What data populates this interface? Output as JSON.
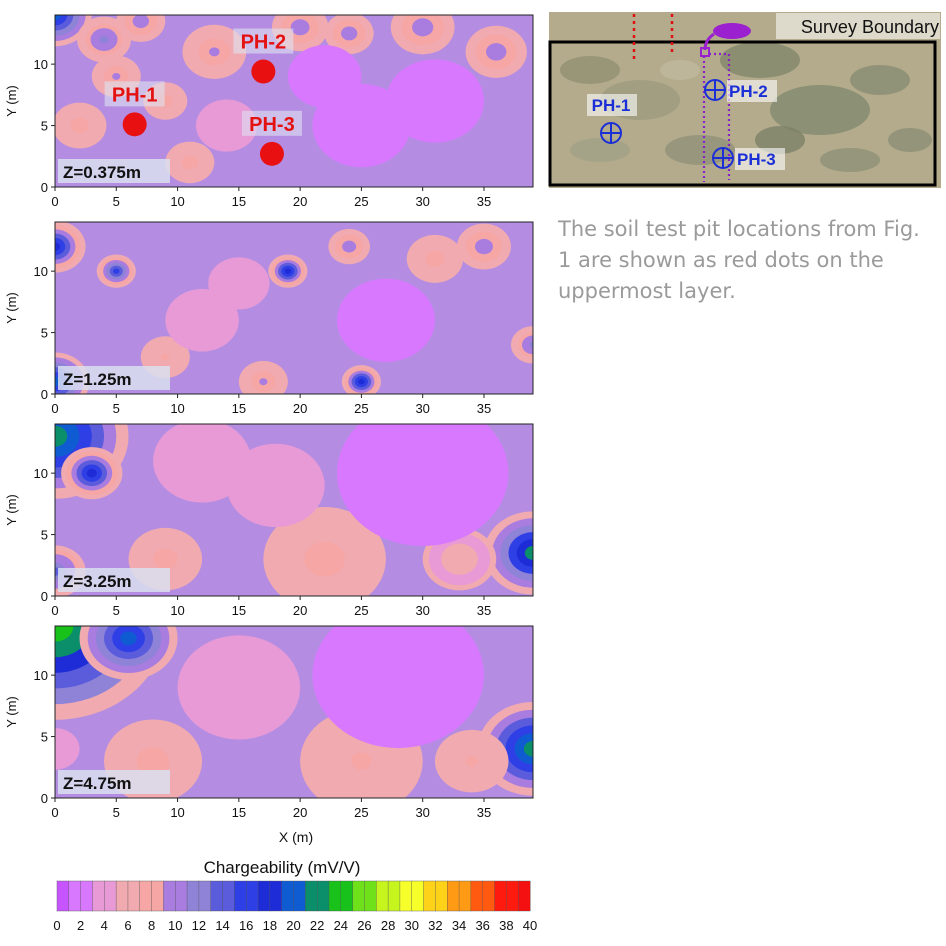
{
  "colors": {
    "scale": [
      "#c655ff",
      "#d878ff",
      "#e89ad6",
      "#f0aab0",
      "#f6a6a4",
      "#a97ce0",
      "#8f83d8",
      "#5b5cdc",
      "#2f3fe6",
      "#1e2cd8",
      "#0f5bd2",
      "#0a8f6a",
      "#19c11b",
      "#6fe11b",
      "#c6f51e",
      "#f7ff2a",
      "#ffd21a",
      "#ff9a14",
      "#ff5a10",
      "#ff1a0f",
      "#f41010"
    ],
    "pit_marker": "#e81010",
    "pit_label": "#e41111",
    "photo_label": "#1b2fd6",
    "red_line": "#e01010",
    "purple_line": "#8a20c8",
    "blob": "#9a20d0"
  },
  "chart_data": [
    {
      "type": "heatmap",
      "layer_label": "Z=0.375m",
      "xlabel": "",
      "ylabel": "Y (m)",
      "xlim": [
        0,
        39
      ],
      "ylim": [
        0,
        14
      ],
      "xticks": [
        "0",
        "5",
        "10",
        "15",
        "20",
        "25",
        "30",
        "35"
      ],
      "yticks": [
        "0",
        "5",
        "10"
      ],
      "pits": [
        {
          "label": "PH-1",
          "x": 6.5,
          "y": 5.1
        },
        {
          "label": "PH-2",
          "x": 17,
          "y": 9.4
        },
        {
          "label": "PH-3",
          "x": 17.7,
          "y": 2.7
        }
      ],
      "hotspots": [
        {
          "x": 0,
          "y": 14,
          "r": 3,
          "v": 22
        },
        {
          "x": 4,
          "y": 12,
          "r": 2.2,
          "v": 13
        },
        {
          "x": 7,
          "y": 13.5,
          "r": 2,
          "v": 12
        },
        {
          "x": 13,
          "y": 11,
          "r": 2.6,
          "v": 10
        },
        {
          "x": 20,
          "y": 13,
          "r": 2.3,
          "v": 12
        },
        {
          "x": 24,
          "y": 12.5,
          "r": 2,
          "v": 11
        },
        {
          "x": 30,
          "y": 13,
          "r": 2.6,
          "v": 12
        },
        {
          "x": 36,
          "y": 11,
          "r": 2.5,
          "v": 12
        },
        {
          "x": 2,
          "y": 5,
          "r": 2.2,
          "v": 9
        },
        {
          "x": 9,
          "y": 7,
          "r": 1.8,
          "v": 9
        },
        {
          "x": 11,
          "y": 2,
          "r": 2,
          "v": 9
        },
        {
          "x": 5,
          "y": 9,
          "r": 2,
          "v": 10
        },
        {
          "x": 25,
          "y": 5,
          "r": 4,
          "v": 2
        },
        {
          "x": 22,
          "y": 9,
          "r": 3,
          "v": 2.5
        },
        {
          "x": 31,
          "y": 7,
          "r": 4,
          "v": 2.5
        },
        {
          "x": 14,
          "y": 5,
          "r": 2.5,
          "v": 3
        }
      ]
    },
    {
      "type": "heatmap",
      "layer_label": "Z=1.25m",
      "xlabel": "",
      "ylabel": "Y (m)",
      "xlim": [
        0,
        39
      ],
      "ylim": [
        0,
        14
      ],
      "xticks": [
        "0",
        "5",
        "10",
        "15",
        "20",
        "25",
        "30",
        "35"
      ],
      "yticks": [
        "0",
        "5",
        "10"
      ],
      "hotspots": [
        {
          "x": 0,
          "y": 12,
          "r": 2.5,
          "v": 20
        },
        {
          "x": 0,
          "y": 1,
          "r": 2.8,
          "v": 22
        },
        {
          "x": 5,
          "y": 10,
          "r": 1.6,
          "v": 18
        },
        {
          "x": 19,
          "y": 10,
          "r": 1.6,
          "v": 20
        },
        {
          "x": 25,
          "y": 1,
          "r": 1.6,
          "v": 20
        },
        {
          "x": 24,
          "y": 12,
          "r": 1.7,
          "v": 11
        },
        {
          "x": 35,
          "y": 12,
          "r": 2.2,
          "v": 12
        },
        {
          "x": 39,
          "y": 4,
          "r": 1.8,
          "v": 13
        },
        {
          "x": 9,
          "y": 3,
          "r": 2,
          "v": 8
        },
        {
          "x": 17,
          "y": 1,
          "r": 2,
          "v": 10
        },
        {
          "x": 31,
          "y": 11,
          "r": 2.3,
          "v": 9
        },
        {
          "x": 15,
          "y": 9,
          "r": 2.5,
          "v": 3
        },
        {
          "x": 27,
          "y": 6,
          "r": 4,
          "v": 2.5
        },
        {
          "x": 12,
          "y": 6,
          "r": 3,
          "v": 3
        }
      ]
    },
    {
      "type": "heatmap",
      "layer_label": "Z=3.25m",
      "xlabel": "",
      "ylabel": "Y (m)",
      "xlim": [
        0,
        39
      ],
      "ylim": [
        0,
        14
      ],
      "xticks": [
        "0",
        "5",
        "10",
        "15",
        "20",
        "25",
        "30",
        "35"
      ],
      "yticks": [
        "0",
        "5",
        "10"
      ],
      "hotspots": [
        {
          "x": 0,
          "y": 13,
          "r": 6,
          "v": 26
        },
        {
          "x": 3,
          "y": 10,
          "r": 2.5,
          "v": 20
        },
        {
          "x": 0,
          "y": 2,
          "r": 2.5,
          "v": 16
        },
        {
          "x": 39,
          "y": 3.5,
          "r": 4,
          "v": 24
        },
        {
          "x": 9,
          "y": 3,
          "r": 3,
          "v": 9
        },
        {
          "x": 22,
          "y": 3,
          "r": 5,
          "v": 9
        },
        {
          "x": 33,
          "y": 3,
          "r": 3,
          "v": 6
        },
        {
          "x": 18,
          "y": 9,
          "r": 4,
          "v": 3
        },
        {
          "x": 30,
          "y": 10,
          "r": 7,
          "v": 2
        },
        {
          "x": 12,
          "y": 11,
          "r": 4,
          "v": 3
        }
      ]
    },
    {
      "type": "heatmap",
      "layer_label": "Z=4.75m",
      "xlabel": "X (m)",
      "ylabel": "Y (m)",
      "xlim": [
        0,
        39
      ],
      "ylim": [
        0,
        14
      ],
      "xticks": [
        "0",
        "5",
        "10",
        "15",
        "20",
        "25",
        "30",
        "35"
      ],
      "yticks": [
        "0",
        "5",
        "10"
      ],
      "hotspots": [
        {
          "x": 0,
          "y": 14,
          "r": 9,
          "v": 28
        },
        {
          "x": 6,
          "y": 13,
          "r": 4,
          "v": 22
        },
        {
          "x": 39,
          "y": 4,
          "r": 4.5,
          "v": 26
        },
        {
          "x": 0,
          "y": 4,
          "r": 2,
          "v": 3
        },
        {
          "x": 8,
          "y": 3,
          "r": 4,
          "v": 9
        },
        {
          "x": 25,
          "y": 3,
          "r": 5,
          "v": 8
        },
        {
          "x": 34,
          "y": 3,
          "r": 3,
          "v": 8
        },
        {
          "x": 28,
          "y": 10,
          "r": 7,
          "v": 2
        },
        {
          "x": 15,
          "y": 9,
          "r": 5,
          "v": 3
        }
      ]
    }
  ],
  "colorbar": {
    "title": "Chargeability (mV/V)",
    "min": 0,
    "max": 40,
    "ticks": [
      "0",
      "2",
      "4",
      "6",
      "8",
      "10",
      "12",
      "14",
      "16",
      "18",
      "20",
      "22",
      "24",
      "26",
      "28",
      "30",
      "32",
      "34",
      "36",
      "38",
      "40"
    ]
  },
  "site_photo": {
    "boundary_label": "Survey Boundary",
    "pits": [
      {
        "label": "PH-1"
      },
      {
        "label": "PH-2"
      },
      {
        "label": "PH-3"
      }
    ]
  },
  "caption": "The soil test pit locations from Fig. 1 are shown as red dots on the uppermost layer."
}
